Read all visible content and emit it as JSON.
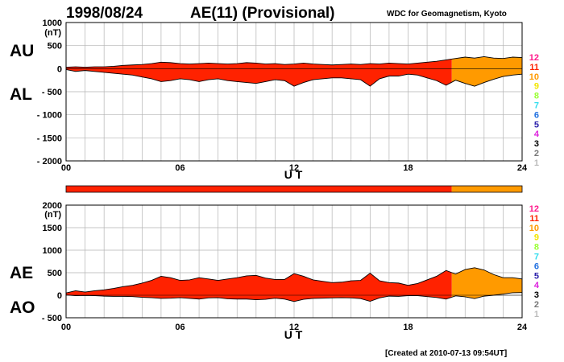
{
  "header": {
    "date": "1998/08/24",
    "title": "AE(11) (Provisional)",
    "credit": "WDC for Geomagnetism, Kyoto"
  },
  "footer": {
    "created": "[Created at 2010-07-13 09:54UT]"
  },
  "legend": {
    "entries": [
      {
        "label": "12",
        "color": "#ff1a8c"
      },
      {
        "label": "11",
        "color": "#ff2200"
      },
      {
        "label": "10",
        "color": "#ff9a00"
      },
      {
        "label": "9",
        "color": "#f2e600"
      },
      {
        "label": "8",
        "color": "#99ff33"
      },
      {
        "label": "7",
        "color": "#33ddee"
      },
      {
        "label": "6",
        "color": "#1f6fe0"
      },
      {
        "label": "5",
        "color": "#2a1faa"
      },
      {
        "label": "4",
        "color": "#dd22dd"
      },
      {
        "label": "3",
        "color": "#000000"
      },
      {
        "label": "2",
        "color": "#777777"
      },
      {
        "label": "1",
        "color": "#bbbbbb"
      }
    ]
  },
  "chart_data": [
    {
      "type": "area",
      "panel": "AU/AL",
      "labels": {
        "upper": "AU",
        "lower": "AL"
      },
      "xlabel": "U T",
      "unit": "(nT)",
      "xlim": [
        0,
        24
      ],
      "ylim": [
        -2000,
        1000
      ],
      "yticks": [
        {
          "v": 1000,
          "t": "1000"
        },
        {
          "v": 500,
          "t": "500"
        },
        {
          "v": 0,
          "t": "0"
        },
        {
          "v": -500,
          "t": "- 500"
        },
        {
          "v": -1000,
          "t": "- 1000"
        },
        {
          "v": -1500,
          "t": "- 1500"
        },
        {
          "v": -2000,
          "t": "- 2000"
        }
      ],
      "xticks": [
        {
          "v": 0,
          "t": "00"
        },
        {
          "v": 6,
          "t": "06"
        },
        {
          "v": 12,
          "t": "12"
        },
        {
          "v": 18,
          "t": "18"
        },
        {
          "v": 24,
          "t": "24"
        }
      ],
      "x": [
        0,
        0.5,
        1,
        1.5,
        2,
        2.5,
        3,
        3.5,
        4,
        4.5,
        5,
        5.5,
        6,
        6.5,
        7,
        7.5,
        8,
        8.5,
        9,
        9.5,
        10,
        10.5,
        11,
        11.5,
        12,
        12.5,
        13,
        13.5,
        14,
        14.5,
        15,
        15.5,
        16,
        16.5,
        17,
        17.5,
        18,
        18.5,
        19,
        19.5,
        20,
        20.5,
        21,
        21.5,
        22,
        22.5,
        23,
        23.5,
        24
      ],
      "series": [
        {
          "name": "AU",
          "values": [
            30,
            40,
            30,
            40,
            40,
            50,
            70,
            80,
            90,
            110,
            140,
            130,
            110,
            100,
            110,
            120,
            110,
            100,
            110,
            130,
            120,
            100,
            110,
            90,
            100,
            120,
            100,
            90,
            80,
            90,
            100,
            90,
            110,
            100,
            120,
            110,
            100,
            120,
            140,
            160,
            190,
            220,
            250,
            230,
            260,
            230,
            220,
            250,
            240
          ]
        },
        {
          "name": "AL",
          "values": [
            -20,
            -60,
            -40,
            -60,
            -80,
            -100,
            -120,
            -140,
            -180,
            -220,
            -280,
            -260,
            -220,
            -240,
            -280,
            -240,
            -220,
            -260,
            -280,
            -300,
            -320,
            -280,
            -240,
            -260,
            -380,
            -300,
            -240,
            -220,
            -200,
            -200,
            -220,
            -240,
            -380,
            -220,
            -160,
            -160,
            -120,
            -140,
            -200,
            -260,
            -360,
            -250,
            -320,
            -380,
            -300,
            -230,
            -170,
            -140,
            -120
          ]
        }
      ],
      "color_segments": [
        {
          "from": 0,
          "to": 20.3,
          "color": "#ff2200"
        },
        {
          "from": 20.3,
          "to": 24,
          "color": "#ff9a00"
        }
      ]
    },
    {
      "type": "area",
      "panel": "AE/AO",
      "labels": {
        "upper": "AE",
        "lower": "AO"
      },
      "xlabel": "U T",
      "unit": "(nT)",
      "xlim": [
        0,
        24
      ],
      "ylim": [
        -500,
        2000
      ],
      "yticks": [
        {
          "v": 2000,
          "t": "2000"
        },
        {
          "v": 1500,
          "t": "1500"
        },
        {
          "v": 1000,
          "t": "1000"
        },
        {
          "v": 500,
          "t": "500"
        },
        {
          "v": 0,
          "t": "0"
        },
        {
          "v": -500,
          "t": "- 500"
        }
      ],
      "xticks": [
        {
          "v": 0,
          "t": "00"
        },
        {
          "v": 6,
          "t": "06"
        },
        {
          "v": 12,
          "t": "12"
        },
        {
          "v": 18,
          "t": "18"
        },
        {
          "v": 24,
          "t": "24"
        }
      ],
      "x": [
        0,
        0.5,
        1,
        1.5,
        2,
        2.5,
        3,
        3.5,
        4,
        4.5,
        5,
        5.5,
        6,
        6.5,
        7,
        7.5,
        8,
        8.5,
        9,
        9.5,
        10,
        10.5,
        11,
        11.5,
        12,
        12.5,
        13,
        13.5,
        14,
        14.5,
        15,
        15.5,
        16,
        16.5,
        17,
        17.5,
        18,
        18.5,
        19,
        19.5,
        20,
        20.5,
        21,
        21.5,
        22,
        22.5,
        23,
        23.5,
        24
      ],
      "series": [
        {
          "name": "AE",
          "values": [
            50,
            100,
            70,
            100,
            120,
            150,
            190,
            220,
            270,
            330,
            420,
            390,
            330,
            340,
            390,
            360,
            330,
            360,
            390,
            430,
            440,
            380,
            350,
            350,
            480,
            420,
            340,
            310,
            280,
            290,
            320,
            330,
            490,
            320,
            280,
            270,
            220,
            260,
            340,
            420,
            550,
            470,
            570,
            610,
            560,
            460,
            390,
            390,
            360
          ]
        },
        {
          "name": "AO",
          "values": [
            5,
            -10,
            -5,
            -10,
            -20,
            -25,
            -25,
            -30,
            -45,
            -55,
            -70,
            -65,
            -55,
            -70,
            -85,
            -60,
            -55,
            -80,
            -85,
            -85,
            -100,
            -90,
            -65,
            -85,
            -140,
            -90,
            -70,
            -65,
            -60,
            -55,
            -60,
            -75,
            -135,
            -60,
            -20,
            -25,
            -10,
            -10,
            -30,
            -50,
            -85,
            -15,
            -35,
            -75,
            -20,
            0,
            25,
            55,
            60
          ]
        }
      ],
      "color_segments": [
        {
          "from": 0,
          "to": 20.3,
          "color": "#ff2200"
        },
        {
          "from": 20.3,
          "to": 24,
          "color": "#ff9a00"
        }
      ]
    }
  ]
}
